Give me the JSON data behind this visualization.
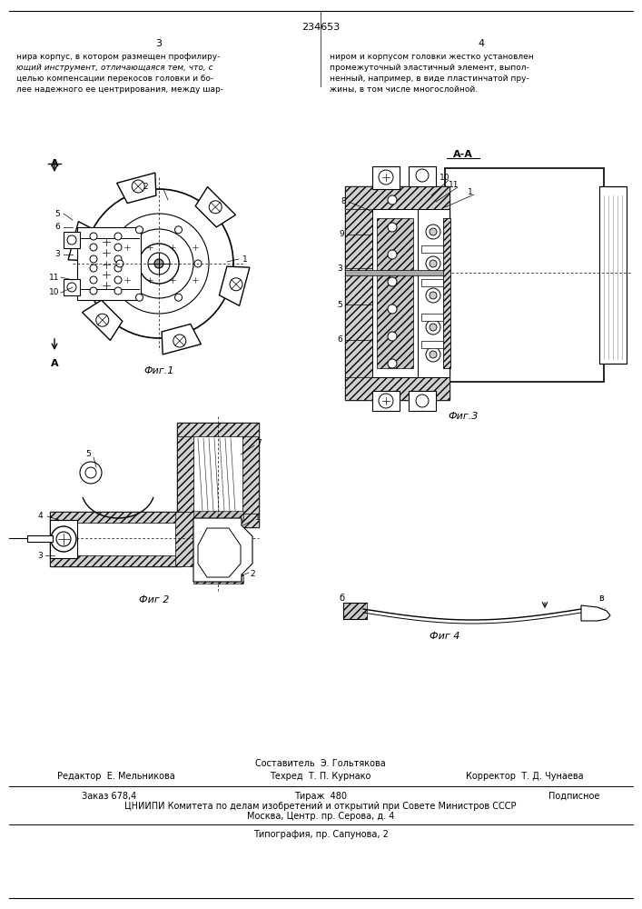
{
  "page_number": "234653",
  "col_left": "3",
  "col_right": "4",
  "text_left_lines": [
    "нира корпус, в котором размещен профилиру-",
    "ющий инструмент, отличающаяся тем, что, с",
    "целью компенсации перекосов головки и бо-",
    "лее надежного ее центрирования, между шар-"
  ],
  "text_left_italic": [
    false,
    true,
    false,
    false
  ],
  "text_right_lines": [
    "ниром и корпусом головки жестко установлен",
    "промежуточный эластичный элемент, выпол-",
    "ненный, например, в виде пластинчатой пру-",
    "жины, в том числе многослойной."
  ],
  "fig1_caption": "Фиг.1",
  "fig2_caption": "Фиг 2",
  "fig3_caption": "Фиг.3",
  "fig4_caption": "Фиг 4",
  "section_label": "А-А",
  "footer_composer": "Составитель  Э. Гольтякова",
  "footer_editor": "Редактор  Е. Мельникова",
  "footer_tech": "Техред  Т. П. Курнако",
  "footer_corrector": "Корректор  Т. Д. Чунаева",
  "footer_order": "Заказ 678,4",
  "footer_copies": "Тираж  480",
  "footer_sub": "Подписное",
  "footer_org": "ЦНИИПИ Комитета по делам изобретений и открытий при Совете Министров СССР",
  "footer_addr": "Москва, Центр. пр. Серова, д. 4",
  "footer_print": "Типография, пр. Сапунова, 2",
  "bg_color": "#ffffff"
}
